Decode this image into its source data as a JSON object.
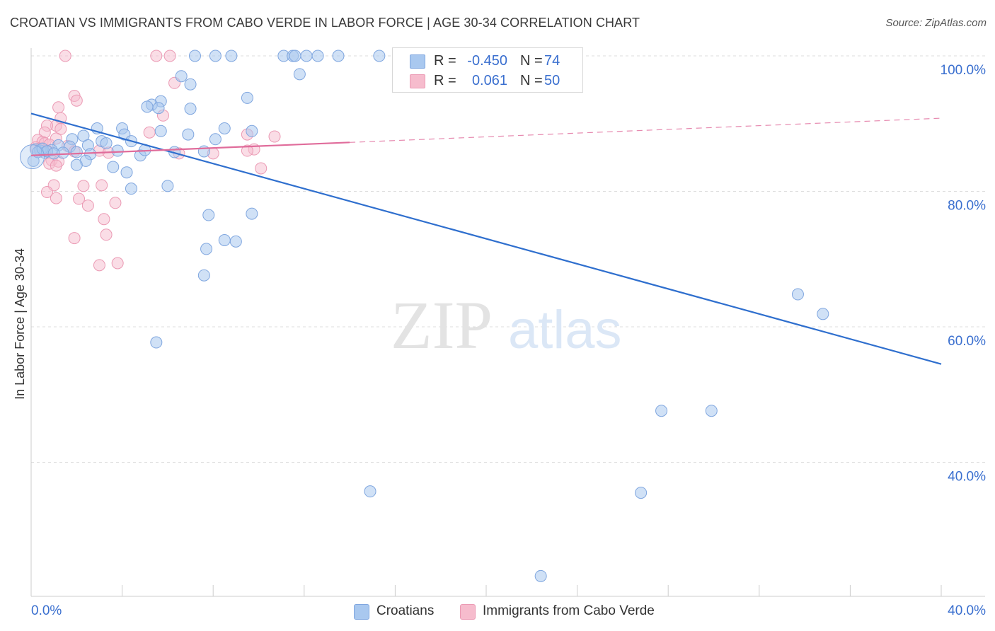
{
  "title": "CROATIAN VS IMMIGRANTS FROM CABO VERDE IN LABOR FORCE | AGE 30-34 CORRELATION CHART",
  "source": "Source: ZipAtlas.com",
  "watermark": {
    "part1": "ZIP",
    "part2": "atlas"
  },
  "colors": {
    "blue_fill": "#a9c8ef",
    "blue_stroke": "#7fa6df",
    "blue_line": "#2f6fce",
    "pink_fill": "#f6bccd",
    "pink_stroke": "#eb9ab4",
    "pink_line": "#e06c9b",
    "axis_text": "#3a6fcf",
    "grid": "#dddddd"
  },
  "legend": {
    "rows": [
      {
        "series": "Croatians",
        "r_label": "R =",
        "r_value": "-0.450",
        "n_label": "N =",
        "n_value": "74"
      },
      {
        "series": "Immigrants from Cabo Verde",
        "r_label": "R =",
        "r_value": "0.061",
        "n_label": "N =",
        "n_value": "50"
      }
    ]
  },
  "chart_data": {
    "type": "scatter",
    "title": "CROATIAN VS IMMIGRANTS FROM CABO VERDE IN LABOR FORCE | AGE 30-34 CORRELATION CHART",
    "xlabel": "",
    "ylabel": "In Labor Force | Age 30-34",
    "xlim": [
      0,
      40
    ],
    "ylim": [
      20,
      102
    ],
    "x_tick_labels": [
      "0.0%",
      "40.0%"
    ],
    "y_ticks": [
      {
        "value": 40,
        "label": "40.0%"
      },
      {
        "value": 60,
        "label": "60.0%"
      },
      {
        "value": 80,
        "label": "80.0%"
      },
      {
        "value": 100,
        "label": "100.0%"
      }
    ],
    "grid": true,
    "legend_position": "top-center",
    "series": [
      {
        "name": "Croatians",
        "trend": {
          "x": [
            0,
            40
          ],
          "y": [
            91.5,
            54.5
          ],
          "dashed_from": null
        },
        "points": [
          [
            7.2,
            100
          ],
          [
            8.1,
            100
          ],
          [
            8.8,
            100
          ],
          [
            11.1,
            100
          ],
          [
            11.5,
            100
          ],
          [
            11.6,
            100
          ],
          [
            12.1,
            100
          ],
          [
            12.6,
            100
          ],
          [
            15.3,
            100
          ],
          [
            17.3,
            100
          ],
          [
            6.6,
            97
          ],
          [
            7.0,
            95.8
          ],
          [
            11.8,
            97.3
          ],
          [
            9.5,
            93.8
          ],
          [
            5.7,
            93.3
          ],
          [
            5.3,
            92.8
          ],
          [
            5.1,
            92.5
          ],
          [
            5.6,
            92.3
          ],
          [
            7.0,
            92.2
          ],
          [
            2.9,
            89.3
          ],
          [
            4.0,
            89.3
          ],
          [
            5.7,
            88.9
          ],
          [
            8.5,
            89.3
          ],
          [
            9.7,
            88.9
          ],
          [
            4.1,
            88.4
          ],
          [
            2.3,
            88.2
          ],
          [
            1.8,
            87.7
          ],
          [
            3.1,
            87.4
          ],
          [
            3.3,
            87.1
          ],
          [
            4.4,
            87.4
          ],
          [
            8.1,
            87.7
          ],
          [
            2.5,
            86.8
          ],
          [
            1.2,
            86.8
          ],
          [
            1.7,
            86.6
          ],
          [
            0.2,
            86.2
          ],
          [
            0.4,
            86.0
          ],
          [
            0.6,
            85.7
          ],
          [
            0.9,
            86.1
          ],
          [
            1.4,
            85.7
          ],
          [
            2.0,
            85.8
          ],
          [
            2.6,
            85.5
          ],
          [
            4.8,
            85.3
          ],
          [
            6.3,
            85.8
          ],
          [
            7.6,
            85.9
          ],
          [
            5.0,
            86.1
          ],
          [
            0.1,
            84.5
          ],
          [
            2.4,
            84.5
          ],
          [
            2.0,
            83.9
          ],
          [
            3.6,
            83.6
          ],
          [
            4.2,
            82.8
          ],
          [
            6.0,
            80.8
          ],
          [
            4.4,
            80.4
          ],
          [
            7.8,
            76.5
          ],
          [
            9.7,
            76.7
          ],
          [
            8.5,
            72.8
          ],
          [
            9.0,
            72.6
          ],
          [
            7.7,
            71.5
          ],
          [
            7.6,
            67.6
          ],
          [
            5.5,
            57.7
          ],
          [
            33.7,
            64.8
          ],
          [
            34.8,
            61.9
          ],
          [
            27.7,
            47.6
          ],
          [
            29.9,
            47.6
          ],
          [
            14.9,
            35.7
          ],
          [
            26.8,
            35.5
          ],
          [
            22.4,
            23.2
          ],
          [
            0.3,
            85.8
          ],
          [
            0.5,
            86.3
          ],
          [
            0.7,
            85.9
          ],
          [
            1.0,
            85.6
          ],
          [
            6.9,
            88.4
          ],
          [
            3.8,
            86.0
          ],
          [
            13.5,
            100
          ],
          [
            16.4,
            100
          ]
        ]
      },
      {
        "name": "Immigrants from Cabo Verde",
        "trend": {
          "x": [
            0,
            40
          ],
          "y": [
            85.3,
            90.8
          ],
          "dashed_from": 14
        },
        "points": [
          [
            1.5,
            100
          ],
          [
            5.5,
            100
          ],
          [
            6.1,
            100
          ],
          [
            6.3,
            96.0
          ],
          [
            1.9,
            94.1
          ],
          [
            2.0,
            93.4
          ],
          [
            1.2,
            92.4
          ],
          [
            1.3,
            90.8
          ],
          [
            1.1,
            89.7
          ],
          [
            1.3,
            89.2
          ],
          [
            0.7,
            89.7
          ],
          [
            0.6,
            88.7
          ],
          [
            5.2,
            88.7
          ],
          [
            9.5,
            88.4
          ],
          [
            10.7,
            88.1
          ],
          [
            1.1,
            87.8
          ],
          [
            0.3,
            87.6
          ],
          [
            0.5,
            87.3
          ],
          [
            0.6,
            87.1
          ],
          [
            0.8,
            86.9
          ],
          [
            1.6,
            86.7
          ],
          [
            0.2,
            86.5
          ],
          [
            0.4,
            86.3
          ],
          [
            0.7,
            86.0
          ],
          [
            1.9,
            85.9
          ],
          [
            3.0,
            86.0
          ],
          [
            3.4,
            85.7
          ],
          [
            6.5,
            85.6
          ],
          [
            8.0,
            85.6
          ],
          [
            9.8,
            86.2
          ],
          [
            0.9,
            84.6
          ],
          [
            1.2,
            84.4
          ],
          [
            0.8,
            84.1
          ],
          [
            1.1,
            83.8
          ],
          [
            10.1,
            83.4
          ],
          [
            1.0,
            80.9
          ],
          [
            2.3,
            80.8
          ],
          [
            3.1,
            80.9
          ],
          [
            0.7,
            79.9
          ],
          [
            1.1,
            79.0
          ],
          [
            2.1,
            78.9
          ],
          [
            3.7,
            78.3
          ],
          [
            2.5,
            77.9
          ],
          [
            3.2,
            75.9
          ],
          [
            3.3,
            73.6
          ],
          [
            1.9,
            73.1
          ],
          [
            3.0,
            69.1
          ],
          [
            3.8,
            69.4
          ],
          [
            9.5,
            86.0
          ],
          [
            5.8,
            91.2
          ]
        ]
      }
    ]
  }
}
